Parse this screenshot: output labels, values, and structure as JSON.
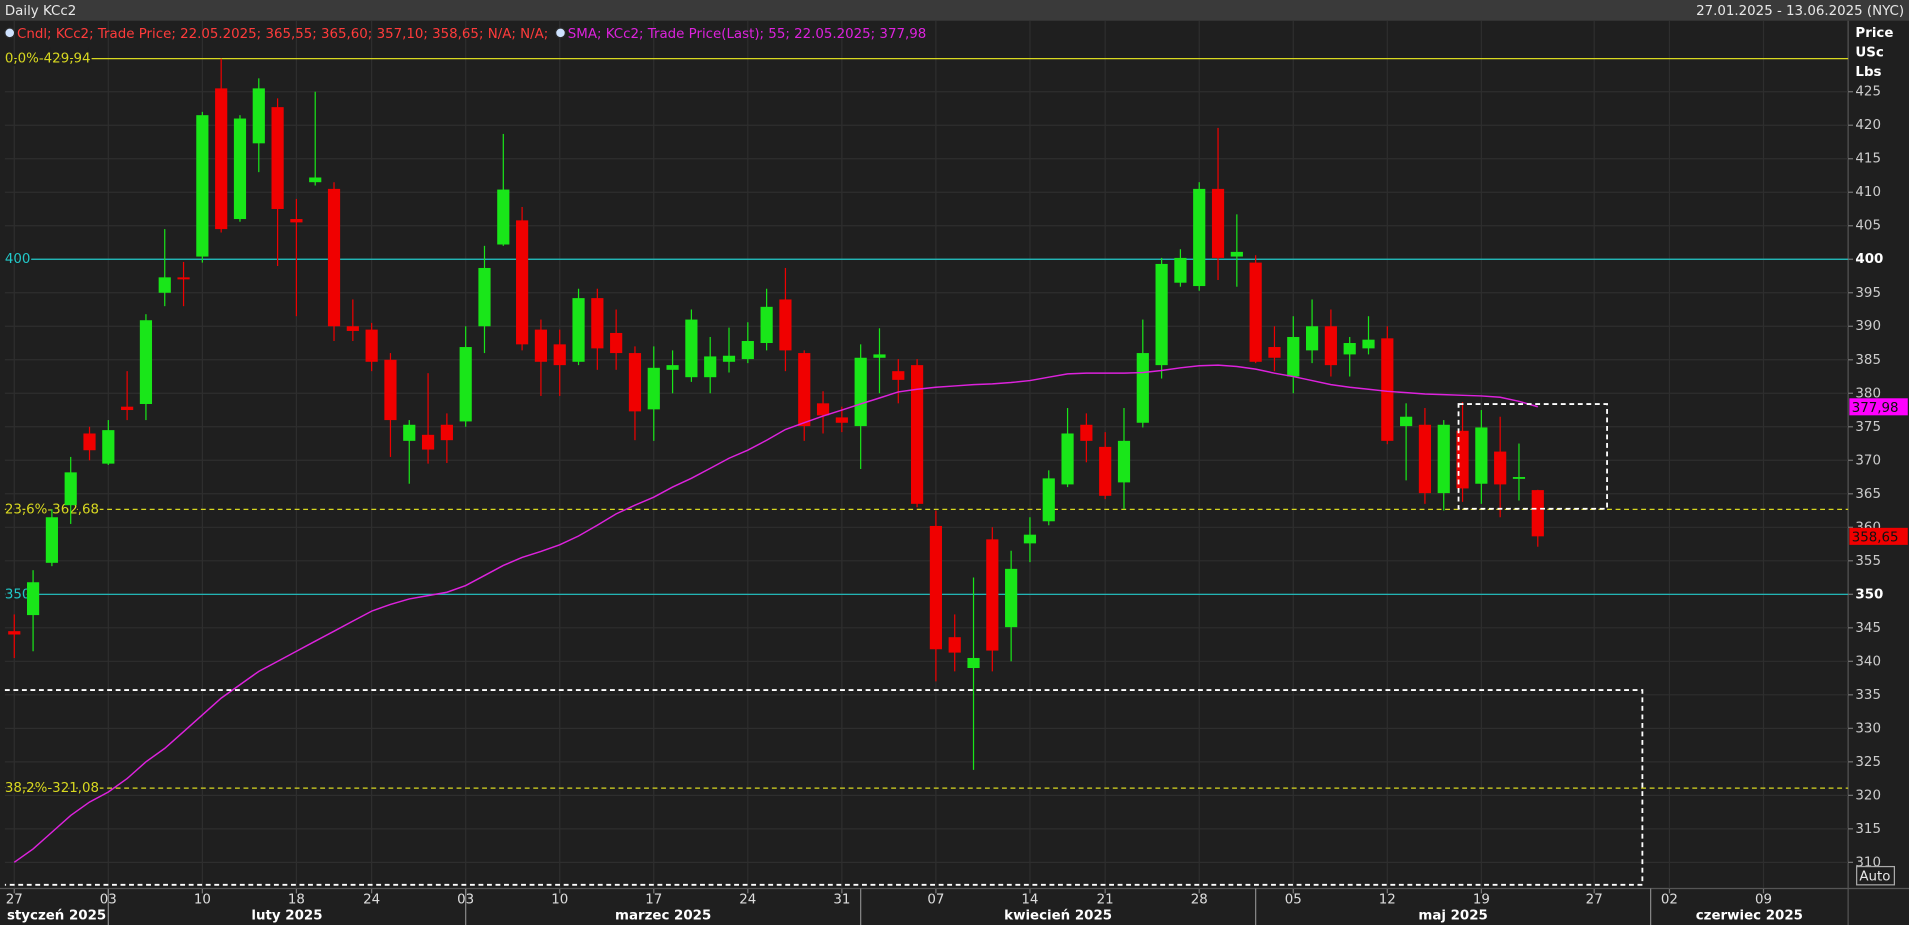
{
  "header": {
    "title": "Daily KCc2",
    "range": "27.01.2025 - 13.06.2025 (NYC)"
  },
  "chart_data": {
    "type": "candlestick",
    "x": [
      "2025-01-27",
      "2025-01-28",
      "2025-01-29",
      "2025-01-30",
      "2025-01-31",
      "2025-02-03",
      "2025-02-04",
      "2025-02-05",
      "2025-02-06",
      "2025-02-07",
      "2025-02-10",
      "2025-02-11",
      "2025-02-12",
      "2025-02-13",
      "2025-02-14",
      "2025-02-18",
      "2025-02-19",
      "2025-02-20",
      "2025-02-21",
      "2025-02-24",
      "2025-02-25",
      "2025-02-26",
      "2025-02-27",
      "2025-02-28",
      "2025-03-03",
      "2025-03-04",
      "2025-03-05",
      "2025-03-06",
      "2025-03-07",
      "2025-03-10",
      "2025-03-11",
      "2025-03-12",
      "2025-03-13",
      "2025-03-14",
      "2025-03-17",
      "2025-03-18",
      "2025-03-19",
      "2025-03-20",
      "2025-03-21",
      "2025-03-24",
      "2025-03-25",
      "2025-03-26",
      "2025-03-27",
      "2025-03-28",
      "2025-03-31",
      "2025-04-01",
      "2025-04-02",
      "2025-04-03",
      "2025-04-04",
      "2025-04-07",
      "2025-04-08",
      "2025-04-09",
      "2025-04-10",
      "2025-04-11",
      "2025-04-14",
      "2025-04-15",
      "2025-04-16",
      "2025-04-17",
      "2025-04-21",
      "2025-04-22",
      "2025-04-23",
      "2025-04-24",
      "2025-04-25",
      "2025-04-28",
      "2025-04-29",
      "2025-04-30",
      "2025-05-01",
      "2025-05-02",
      "2025-05-05",
      "2025-05-06",
      "2025-05-07",
      "2025-05-08",
      "2025-05-09",
      "2025-05-12",
      "2025-05-13",
      "2025-05-14",
      "2025-05-15",
      "2025-05-16",
      "2025-05-19",
      "2025-05-20",
      "2025-05-21",
      "2025-05-22"
    ],
    "xlim": [
      "2025-01-27",
      "2025-06-13"
    ],
    "series": [
      {
        "name": "Cndl; KCc2; Trade Price; 22.05.2025; 365,55; 365,60; 357,10; 358,65; N/A; N/A;",
        "type": "candlestick",
        "color": "#ff3b3b",
        "up_color": "#19e619",
        "down_color": "#f00000",
        "open": [
          344.5,
          346.9,
          354.7,
          363.3,
          374,
          369.5,
          378,
          378.4,
          395,
          397.3,
          400.4,
          425.5,
          406,
          417.3,
          422.7,
          406,
          411.5,
          410.5,
          390,
          389.5,
          385,
          372.9,
          373.8,
          375.3,
          375.8,
          390,
          402.2,
          405.8,
          389.5,
          387.3,
          384.7,
          394.2,
          389,
          386,
          377.6,
          383.5,
          382.4,
          382.4,
          384.7,
          385.1,
          387.5,
          394,
          386,
          378.5,
          376.4,
          375.1,
          385.3,
          383.3,
          384.2,
          360.2,
          343.6,
          339,
          358.2,
          345.1,
          357.6,
          360.9,
          366.4,
          375.3,
          372,
          366.7,
          375.6,
          384.2,
          396.5,
          396,
          410.5,
          400.4,
          399.5,
          386.9,
          382.5,
          386.4,
          390,
          385.8,
          386.7,
          388.2,
          375.1,
          375.3,
          365.1,
          374.4,
          366.5,
          371.3,
          367.3,
          365.55
        ],
        "high": [
          347,
          353.6,
          362.7,
          370.5,
          375,
          376,
          383.3,
          391.8,
          404.5,
          399.6,
          422,
          429.94,
          421.5,
          427,
          424,
          409,
          425,
          411.5,
          394,
          390.5,
          386,
          376,
          383,
          377,
          390,
          402,
          418.7,
          407.8,
          391,
          389.5,
          395.6,
          395.6,
          392.5,
          387,
          387,
          386.4,
          392.5,
          388.4,
          389.8,
          390.6,
          395.6,
          398.7,
          386.4,
          380.3,
          378,
          387.3,
          389.7,
          385.1,
          385.1,
          362.5,
          347,
          352.5,
          360,
          356.5,
          361.5,
          368.5,
          377.8,
          377,
          374.2,
          377.8,
          391,
          400.2,
          401.5,
          411.5,
          419.6,
          406.7,
          400.6,
          390,
          391.5,
          394,
          392.5,
          388.4,
          391.5,
          390,
          378.5,
          377.8,
          376,
          378.7,
          377.5,
          376.5,
          372.5,
          365.6
        ],
        "low": [
          340.5,
          341.5,
          354.2,
          360.5,
          370,
          369.3,
          376,
          376,
          393,
          393,
          399.5,
          404,
          405.6,
          413,
          399,
          391.5,
          411,
          387.8,
          387.8,
          383.3,
          370.5,
          366.5,
          369.5,
          369.6,
          375,
          386,
          402,
          386.4,
          379.6,
          379.6,
          384.2,
          383.5,
          383.5,
          373,
          372.9,
          380,
          381.7,
          380,
          383.1,
          384.5,
          386.4,
          383.3,
          372.9,
          374,
          374.2,
          368.7,
          380,
          378.5,
          363,
          337,
          338.5,
          323.8,
          338.5,
          340,
          354.8,
          360.3,
          366,
          369.7,
          364.2,
          362.7,
          374.9,
          382.2,
          395.9,
          395.3,
          396.9,
          395.9,
          384.5,
          383.3,
          380,
          384.5,
          382.5,
          382.5,
          385.8,
          372.4,
          367,
          363.5,
          362.5,
          363.8,
          363.5,
          361.5,
          364,
          357.1
        ],
        "close": [
          344,
          351.8,
          361.5,
          368.2,
          371.5,
          374.5,
          377.5,
          390.9,
          397.3,
          397,
          421.5,
          404.5,
          421,
          425.5,
          407.5,
          405.5,
          412.2,
          390,
          389.3,
          384.7,
          376,
          375.3,
          371.6,
          373,
          386.9,
          398.7,
          410.4,
          387.3,
          384.7,
          384.2,
          394.2,
          386.7,
          386,
          377.3,
          383.8,
          384.2,
          391,
          385.5,
          385.6,
          387.8,
          392.9,
          386.4,
          375.1,
          376.7,
          375.6,
          385.3,
          385.8,
          382,
          363.5,
          341.8,
          341.3,
          340.5,
          341.6,
          353.8,
          358.9,
          367.3,
          374,
          372.9,
          364.7,
          372.9,
          386,
          399.3,
          400.2,
          410.5,
          400.2,
          401.1,
          384.7,
          385.3,
          388.4,
          390,
          384.2,
          387.5,
          388,
          372.9,
          376.5,
          365.1,
          375.3,
          365.8,
          374.9,
          366.4,
          367.5,
          358.65
        ]
      },
      {
        "name": "SMA; KCc2; Trade Price(Last);  55; 22.05.2025; 377,98",
        "type": "line",
        "color": "#dd22dd",
        "values": [
          310,
          312,
          314.5,
          317,
          319,
          320.5,
          322.5,
          325,
          327,
          329.5,
          332,
          334.5,
          336.5,
          338.5,
          340,
          341.5,
          343,
          344.5,
          346,
          347.5,
          348.5,
          349.3,
          349.8,
          350.3,
          351.3,
          352.8,
          354.3,
          355.5,
          356.4,
          357.4,
          358.7,
          360.3,
          362,
          363.3,
          364.5,
          366,
          367.3,
          368.8,
          370.3,
          371.5,
          373,
          374.6,
          375.6,
          376.6,
          377.5,
          378.4,
          379.3,
          380.2,
          380.6,
          380.9,
          381.1,
          381.3,
          381.4,
          381.6,
          381.9,
          382.4,
          382.9,
          383,
          383,
          383,
          383.1,
          383.4,
          383.8,
          384.1,
          384.2,
          384,
          383.6,
          383,
          382.5,
          381.9,
          381.3,
          380.9,
          380.6,
          380.3,
          380.1,
          379.9,
          379.8,
          379.7,
          379.6,
          379.4,
          378.8,
          377.98
        ]
      }
    ],
    "ylim": [
      306.1,
      435.6
    ],
    "yticks": [
      310,
      315,
      320,
      325,
      330,
      335,
      340,
      345,
      350,
      355,
      360,
      365,
      370,
      375,
      380,
      385,
      390,
      395,
      400,
      405,
      410,
      415,
      420,
      425
    ],
    "y_label": [
      "Price",
      "USc",
      "Lbs"
    ],
    "grid": true,
    "xticks": [
      {
        "value": "2025-01-27",
        "label": "27"
      },
      {
        "value": "2025-02-03",
        "label": "03"
      },
      {
        "value": "2025-02-10",
        "label": "10"
      },
      {
        "value": "2025-02-18",
        "label": "18"
      },
      {
        "value": "2025-02-24",
        "label": "24"
      },
      {
        "value": "2025-03-03",
        "label": "03"
      },
      {
        "value": "2025-03-10",
        "label": "10"
      },
      {
        "value": "2025-03-17",
        "label": "17"
      },
      {
        "value": "2025-03-24",
        "label": "24"
      },
      {
        "value": "2025-03-31",
        "label": "31"
      },
      {
        "value": "2025-04-07",
        "label": "07"
      },
      {
        "value": "2025-04-14",
        "label": "14"
      },
      {
        "value": "2025-04-21",
        "label": "21"
      },
      {
        "value": "2025-04-28",
        "label": "28"
      },
      {
        "value": "2025-05-05",
        "label": "05"
      },
      {
        "value": "2025-05-12",
        "label": "12"
      },
      {
        "value": "2025-05-19",
        "label": "19"
      },
      {
        "value": "2025-05-27",
        "label": "27"
      },
      {
        "value": "2025-06-02",
        "label": "02"
      },
      {
        "value": "2025-06-09",
        "label": "09"
      }
    ],
    "months": [
      {
        "start": "2025-01-01",
        "label": "styczeń 2025"
      },
      {
        "start": "2025-02-01",
        "label": "luty 2025"
      },
      {
        "start": "2025-03-01",
        "label": "marzec 2025"
      },
      {
        "start": "2025-04-01",
        "label": "kwiecień 2025"
      },
      {
        "start": "2025-05-01",
        "label": "maj 2025"
      },
      {
        "start": "2025-06-01",
        "label": "czerwiec 2025"
      }
    ],
    "hlines": [
      {
        "value": 429.94,
        "label": "0,0%-429,94",
        "color": "#d8d820",
        "dashed": false
      },
      {
        "value": 400,
        "label": "400",
        "color": "#22c8c8",
        "dashed": false
      },
      {
        "value": 350,
        "label": "350",
        "color": "#22c8c8",
        "dashed": false
      },
      {
        "value": 362.68,
        "label": "23,6%-362,68",
        "color": "#d8d820",
        "dashed": true
      },
      {
        "value": 321.08,
        "label": "38,2%-321,08",
        "color": "#d8d820",
        "dashed": true
      }
    ],
    "price_tags": [
      {
        "value": 377.98,
        "label": "377,98",
        "color": "#ff00ff"
      },
      {
        "value": 358.65,
        "label": "358,65",
        "color": "#f00000"
      }
    ],
    "auto_button": "Auto"
  }
}
